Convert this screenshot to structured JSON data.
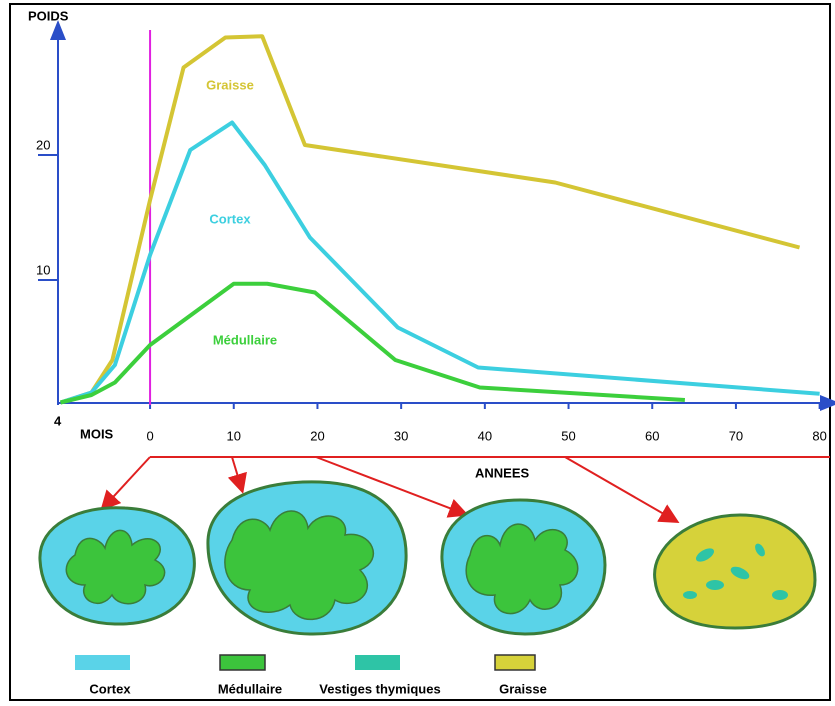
{
  "chart_data": {
    "type": "line",
    "y_axis_label": "POIDS",
    "x_axis_label_left": "MOIS",
    "x_axis_label": "ANNEES",
    "x_start_label": "4",
    "xlim": [
      -11,
      81
    ],
    "xticks": [
      0,
      10,
      20,
      30,
      40,
      50,
      60,
      70,
      80
    ],
    "ylim": [
      0,
      30
    ],
    "yticks": [
      10,
      20
    ],
    "series": [
      {
        "name": "Graisse",
        "color": "#d4c534",
        "x": [
          -10.7,
          -7,
          -4.5,
          0,
          4,
          9,
          13.4,
          18.5,
          48.4,
          77.6
        ],
        "values": [
          0.2,
          1,
          3.6,
          16.4,
          27,
          29.4,
          29.5,
          20.8,
          17.8,
          12.6
        ]
      },
      {
        "name": "Cortex",
        "color": "#3ccfe0",
        "x": [
          -10.7,
          -7,
          -4.2,
          0,
          4.8,
          9.8,
          13.7,
          19.1,
          29.6,
          39.2,
          80
        ],
        "values": [
          0.2,
          1,
          3.2,
          12,
          20.4,
          22.6,
          19.2,
          13.4,
          6.2,
          3,
          0.9
        ]
      },
      {
        "name": "Médullaire",
        "color": "#3ccf3c",
        "x": [
          -10.7,
          -7,
          -4.2,
          0,
          10,
          14,
          19.7,
          29.3,
          39.4,
          63.9
        ],
        "values": [
          0.2,
          0.8,
          1.8,
          4.8,
          9.7,
          9.7,
          9,
          3.6,
          1.4,
          0.4
        ]
      }
    ]
  },
  "diagram_legend": [
    {
      "label": "Cortex",
      "color": "#5ad3e8"
    },
    {
      "label": "Médullaire",
      "color": "#3cc43c"
    },
    {
      "label": "Vestiges thymiques",
      "color": "#2ec4a6"
    },
    {
      "label": "Graisse",
      "color": "#d6d23a"
    }
  ]
}
